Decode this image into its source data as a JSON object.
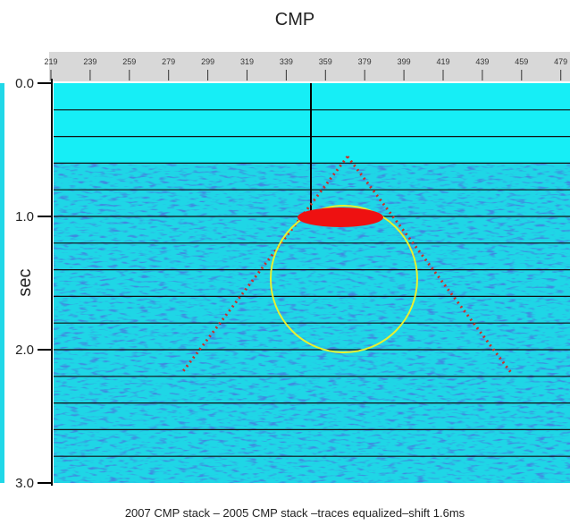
{
  "figure": {
    "title": "CMP",
    "y_label": "sec",
    "x_ticks": [
      "219",
      "239",
      "259",
      "279",
      "299",
      "319",
      "339",
      "359",
      "379",
      "399",
      "419",
      "439",
      "459",
      "479"
    ],
    "y_ticks": [
      "0.0",
      "1.0",
      "2.0",
      "3.0"
    ],
    "caption": "2007 CMP stack – 2005 CMP stack –traces equalized–shift 1.6ms"
  }
}
